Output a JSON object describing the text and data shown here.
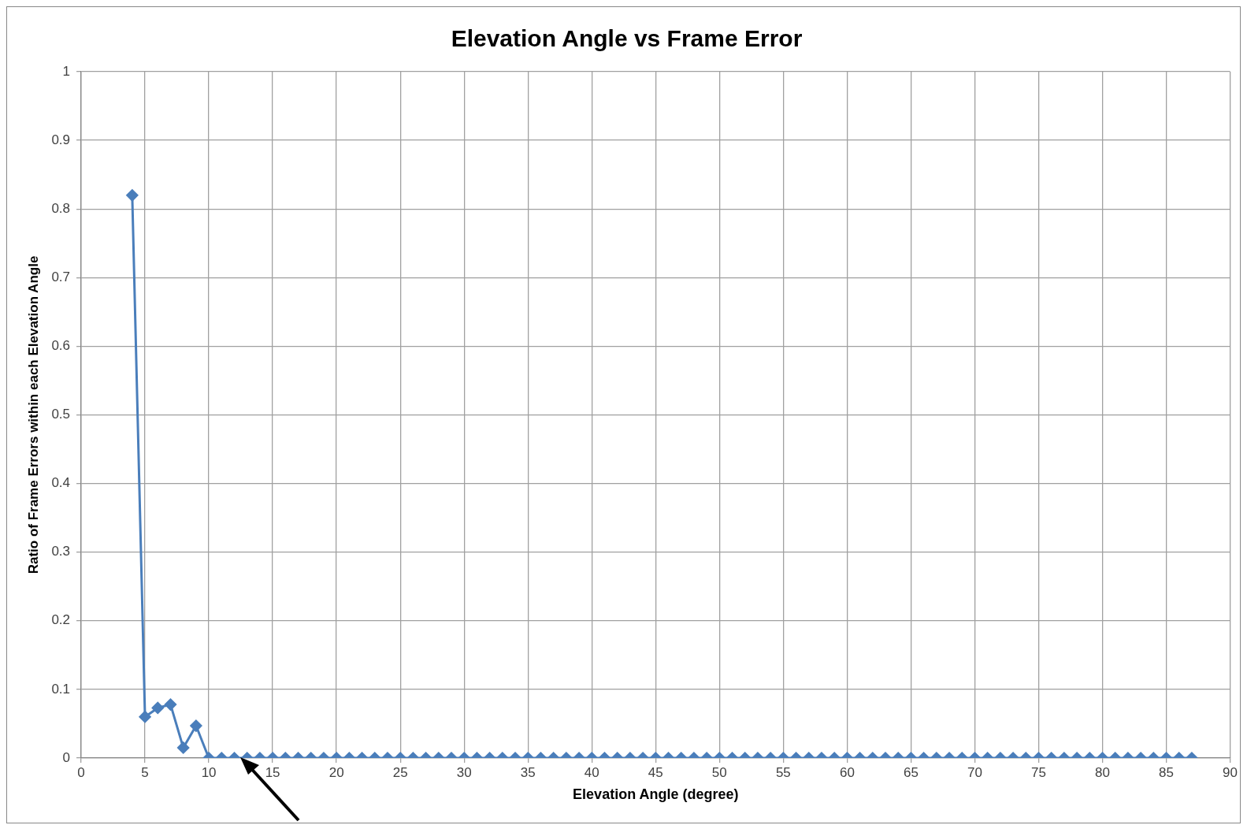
{
  "chart_data": {
    "type": "line",
    "title": "Elevation Angle vs Frame Error",
    "xlabel": "Elevation Angle (degree)",
    "ylabel": "Ratio of Frame Errors within each Elevation Angle",
    "x": [
      4,
      5,
      6,
      7,
      8,
      9,
      10,
      11,
      12,
      13,
      14,
      15,
      16,
      17,
      18,
      19,
      20,
      21,
      22,
      23,
      24,
      25,
      26,
      27,
      28,
      29,
      30,
      31,
      32,
      33,
      34,
      35,
      36,
      37,
      38,
      39,
      40,
      41,
      42,
      43,
      44,
      45,
      46,
      47,
      48,
      49,
      50,
      51,
      52,
      53,
      54,
      55,
      56,
      57,
      58,
      59,
      60,
      61,
      62,
      63,
      64,
      65,
      66,
      67,
      68,
      69,
      70,
      71,
      72,
      73,
      74,
      75,
      76,
      77,
      78,
      79,
      80,
      81,
      82,
      83,
      84,
      85,
      86,
      87
    ],
    "series": [
      {
        "color": "#4a7ebb",
        "values": [
          0.82,
          0.06,
          0.073,
          0.078,
          0.015,
          0.047,
          0,
          0,
          0,
          0,
          0,
          0,
          0,
          0,
          0,
          0,
          0,
          0,
          0,
          0,
          0,
          0,
          0,
          0,
          0,
          0,
          0,
          0,
          0,
          0,
          0,
          0,
          0,
          0,
          0,
          0,
          0,
          0,
          0,
          0,
          0,
          0,
          0,
          0,
          0,
          0,
          0,
          0,
          0,
          0,
          0,
          0,
          0,
          0,
          0,
          0,
          0,
          0,
          0,
          0,
          0,
          0,
          0,
          0,
          0,
          0,
          0,
          0,
          0,
          0,
          0,
          0,
          0,
          0,
          0,
          0,
          0,
          0,
          0,
          0,
          0,
          0,
          0,
          0
        ]
      }
    ],
    "xlim": [
      0,
      90
    ],
    "xticks": [
      0,
      5,
      10,
      15,
      20,
      25,
      30,
      35,
      40,
      45,
      50,
      55,
      60,
      65,
      70,
      75,
      80,
      85,
      90
    ],
    "ylim": [
      0,
      1
    ],
    "yticks": [
      0,
      0.1,
      0.2,
      0.3,
      0.4,
      0.5,
      0.6,
      0.7,
      0.8,
      0.9,
      1
    ],
    "grid": true,
    "legend": false,
    "marker": "diamond",
    "line_style": "solid"
  }
}
